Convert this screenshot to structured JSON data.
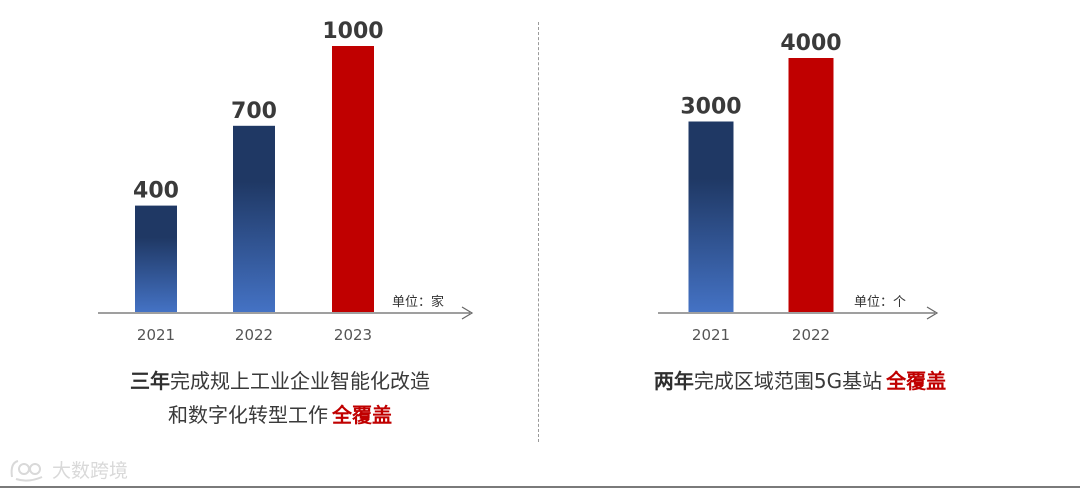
{
  "chart_data": [
    {
      "type": "bar",
      "categories": [
        "2021",
        "2022",
        "2023"
      ],
      "values": [
        400,
        700,
        1000
      ],
      "value_labels": [
        "400",
        "700",
        "1000"
      ],
      "unit": "单位：家",
      "highlight_index": 2,
      "ylim": [
        0,
        1000
      ],
      "colors": {
        "base_top": "#1f3864",
        "base_bottom": "#4472c4",
        "highlight": "#c00000"
      }
    },
    {
      "type": "bar",
      "categories": [
        "2021",
        "2022"
      ],
      "values": [
        3000,
        4000
      ],
      "value_labels": [
        "3000",
        "4000"
      ],
      "unit": "单位：个",
      "highlight_index": 1,
      "ylim": [
        0,
        4000
      ],
      "colors": {
        "base_top": "#1f3864",
        "base_bottom": "#4472c4",
        "highlight": "#c00000"
      }
    }
  ],
  "captions": {
    "left": {
      "line1_bold": "三年",
      "line1_rest": "完成规上工业企业智能化改造",
      "line2": "和数字化转型工作",
      "accent": "全覆盖"
    },
    "right": {
      "bold": "两年",
      "rest": "完成区域范围5G基站",
      "accent": "全覆盖"
    }
  },
  "watermark": {
    "text": "大数跨境"
  }
}
